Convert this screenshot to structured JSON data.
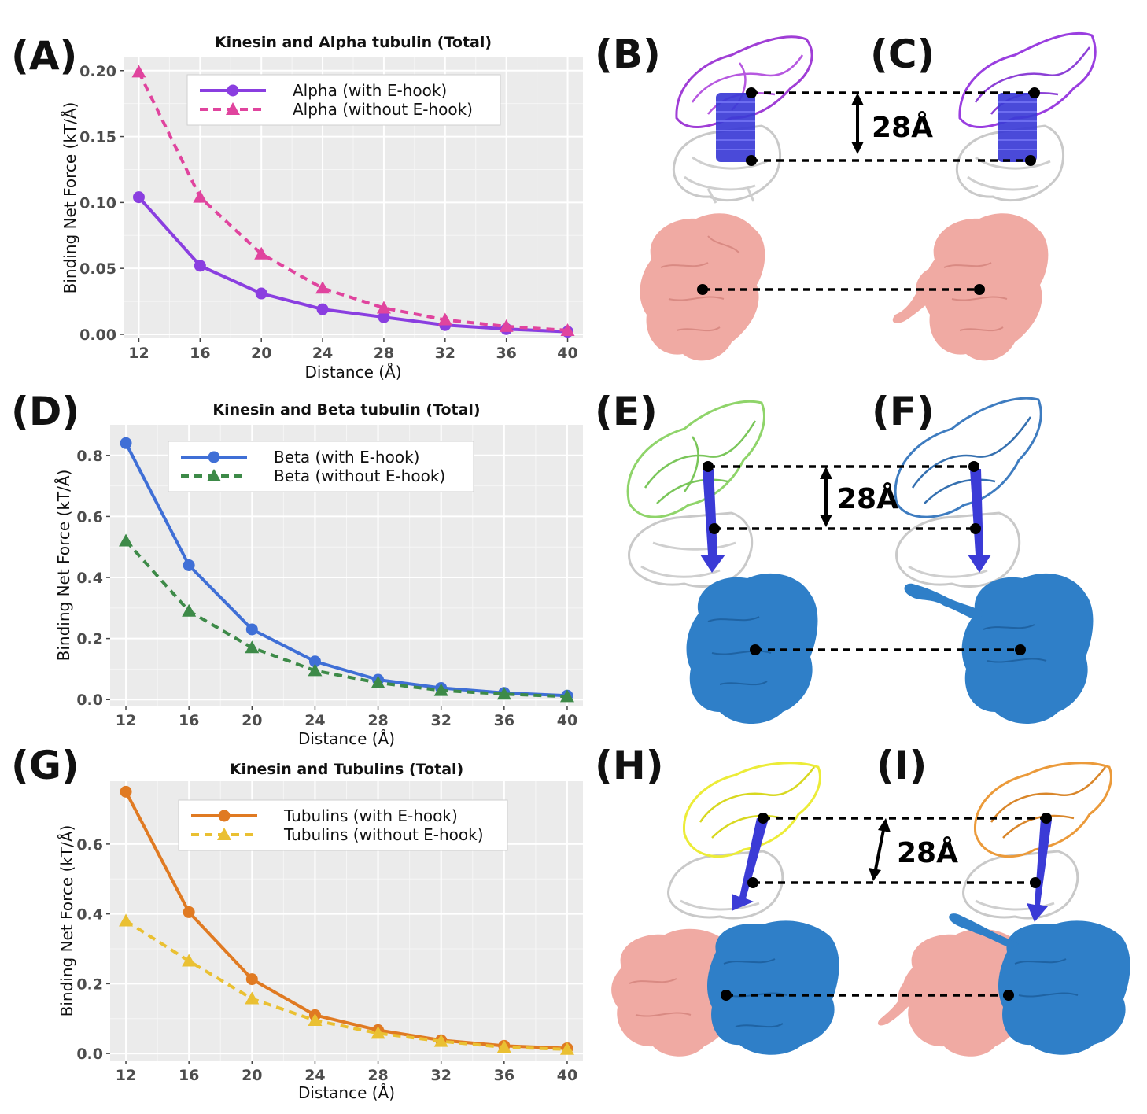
{
  "panels": {
    "A": "(A)",
    "B": "(B)",
    "C": "(C)",
    "D": "(D)",
    "E": "(E)",
    "F": "(F)",
    "G": "(G)",
    "H": "(H)",
    "I": "(I)"
  },
  "distance_labels": [
    "28Å",
    "28Å",
    "28Å"
  ],
  "colors": {
    "alpha_with": "#8a3ee0",
    "alpha_without": "#e0449e",
    "beta_with": "#3f6fd6",
    "beta_without": "#3d8a48",
    "tub_with": "#e07a22",
    "tub_without": "#eac032",
    "protein_pink": "#f0aaa3",
    "protein_blue": "#2f7fc8",
    "ribbon_purple": "#a03ed6",
    "ribbon_green": "#8fd46a",
    "ribbon_blue": "#3e7cc0",
    "ribbon_yellow": "#ecec38",
    "ribbon_orange": "#eb9a3a",
    "helix_blue": "#3b3bd6",
    "ribbon_grey": "#c9c9c9",
    "panel_bg": "#ebebeb"
  },
  "chart_data": [
    {
      "type": "line",
      "title": "Kinesin and Alpha tubulin (Total)",
      "xlabel": "Distance (Å)",
      "ylabel": "Binding Net Force (kT/Å)",
      "x": [
        12,
        16,
        20,
        24,
        28,
        32,
        36,
        40
      ],
      "xlim": [
        11,
        41
      ],
      "ylim": [
        -0.003,
        0.21
      ],
      "yticks": [
        0.0,
        0.05,
        0.1,
        0.15,
        0.2
      ],
      "ytick_labels": [
        "0.00",
        "0.05",
        "0.10",
        "0.15",
        "0.20"
      ],
      "grid": true,
      "legend": "top-right",
      "series": [
        {
          "name": "Alpha (with E-hook)",
          "values": [
            0.104,
            0.052,
            0.031,
            0.019,
            0.013,
            0.007,
            0.004,
            0.002
          ],
          "marker": "circle",
          "dash": "solid"
        },
        {
          "name": "Alpha (without E-hook)",
          "values": [
            0.199,
            0.104,
            0.061,
            0.035,
            0.02,
            0.011,
            0.006,
            0.003
          ],
          "marker": "triangle",
          "dash": "dashed"
        }
      ]
    },
    {
      "type": "line",
      "title": "Kinesin and Beta tubulin (Total)",
      "xlabel": "Distance (Å)",
      "ylabel": "Binding Net Force (kT/Å)",
      "x": [
        12,
        16,
        20,
        24,
        28,
        32,
        36,
        40
      ],
      "xlim": [
        11,
        41
      ],
      "ylim": [
        -0.02,
        0.9
      ],
      "yticks": [
        0.0,
        0.2,
        0.4,
        0.6,
        0.8
      ],
      "ytick_labels": [
        "0.0",
        "0.2",
        "0.4",
        "0.6",
        "0.8"
      ],
      "grid": true,
      "legend": "top-right",
      "series": [
        {
          "name": "Beta (with E-hook)",
          "values": [
            0.84,
            0.44,
            0.23,
            0.125,
            0.065,
            0.038,
            0.022,
            0.013
          ],
          "marker": "circle",
          "dash": "solid"
        },
        {
          "name": "Beta (without E-hook)",
          "values": [
            0.52,
            0.29,
            0.17,
            0.095,
            0.055,
            0.03,
            0.018,
            0.01
          ],
          "marker": "triangle",
          "dash": "dashed"
        }
      ]
    },
    {
      "type": "line",
      "title": "Kinesin and Tubulins (Total)",
      "xlabel": "Distance (Å)",
      "ylabel": "Binding Net Force (kT/Å)",
      "x": [
        12,
        16,
        20,
        24,
        28,
        32,
        36,
        40
      ],
      "xlim": [
        11,
        41
      ],
      "ylim": [
        -0.02,
        0.78
      ],
      "yticks": [
        0.0,
        0.2,
        0.4,
        0.6
      ],
      "ytick_labels": [
        "0.0",
        "0.2",
        "0.4",
        "0.6"
      ],
      "grid": true,
      "legend": "top-right",
      "series": [
        {
          "name": "Tubulins (with E-hook)",
          "values": [
            0.75,
            0.405,
            0.213,
            0.11,
            0.067,
            0.038,
            0.022,
            0.015
          ],
          "marker": "circle",
          "dash": "solid"
        },
        {
          "name": "Tubulins (without E-hook)",
          "values": [
            0.38,
            0.265,
            0.157,
            0.095,
            0.058,
            0.035,
            0.018,
            0.012
          ],
          "marker": "triangle",
          "dash": "dashed"
        }
      ]
    }
  ]
}
